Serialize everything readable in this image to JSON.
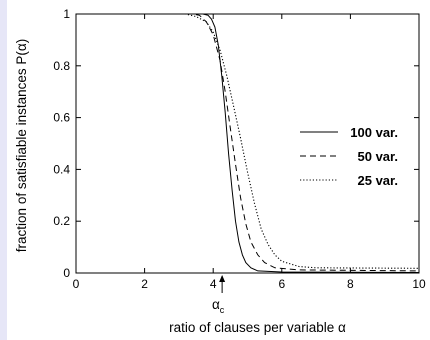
{
  "chart_data": {
    "type": "line",
    "title": "",
    "xlabel": "ratio of clauses per variable α",
    "ylabel": "fraction of satisfiable instances P(α)",
    "xlim": [
      0,
      10
    ],
    "ylim": [
      0,
      1
    ],
    "xticks": [
      "0",
      "2",
      "4",
      "6",
      "8",
      "10"
    ],
    "yticks": [
      "0",
      "0.2",
      "0.4",
      "0.6",
      "0.8",
      "1"
    ],
    "grid": false,
    "legend_position": "right",
    "annotation": {
      "symbol": "α",
      "subscript": "c",
      "x": 4.26
    },
    "series": [
      {
        "name": "100 var.",
        "style": "solid",
        "points": [
          [
            0,
            1
          ],
          [
            3.7,
            1
          ],
          [
            3.85,
            0.995
          ],
          [
            3.95,
            0.98
          ],
          [
            4.05,
            0.95
          ],
          [
            4.15,
            0.88
          ],
          [
            4.25,
            0.76
          ],
          [
            4.35,
            0.62
          ],
          [
            4.45,
            0.46
          ],
          [
            4.55,
            0.32
          ],
          [
            4.65,
            0.2
          ],
          [
            4.75,
            0.12
          ],
          [
            4.85,
            0.07
          ],
          [
            4.95,
            0.04
          ],
          [
            5.1,
            0.02
          ],
          [
            5.3,
            0.008
          ],
          [
            6,
            0.004
          ],
          [
            10,
            0.002
          ]
        ]
      },
      {
        "name": "50 var.",
        "style": "dashed",
        "points": [
          [
            0,
            1
          ],
          [
            3.4,
            1
          ],
          [
            3.6,
            0.995
          ],
          [
            3.8,
            0.97
          ],
          [
            4.0,
            0.92
          ],
          [
            4.2,
            0.82
          ],
          [
            4.35,
            0.7
          ],
          [
            4.5,
            0.56
          ],
          [
            4.65,
            0.42
          ],
          [
            4.8,
            0.29
          ],
          [
            4.95,
            0.19
          ],
          [
            5.1,
            0.12
          ],
          [
            5.3,
            0.07
          ],
          [
            5.5,
            0.04
          ],
          [
            5.8,
            0.02
          ],
          [
            6.5,
            0.012
          ],
          [
            10,
            0.008
          ]
        ]
      },
      {
        "name": "25 var.",
        "style": "dotted",
        "points": [
          [
            0,
            1
          ],
          [
            3.2,
            1
          ],
          [
            3.5,
            0.99
          ],
          [
            3.8,
            0.97
          ],
          [
            4.0,
            0.93
          ],
          [
            4.2,
            0.86
          ],
          [
            4.4,
            0.76
          ],
          [
            4.6,
            0.64
          ],
          [
            4.8,
            0.52
          ],
          [
            5.0,
            0.39
          ],
          [
            5.2,
            0.27
          ],
          [
            5.4,
            0.17
          ],
          [
            5.6,
            0.11
          ],
          [
            5.8,
            0.07
          ],
          [
            6.0,
            0.045
          ],
          [
            6.5,
            0.025
          ],
          [
            7,
            0.02
          ],
          [
            10,
            0.018
          ]
        ]
      }
    ]
  }
}
